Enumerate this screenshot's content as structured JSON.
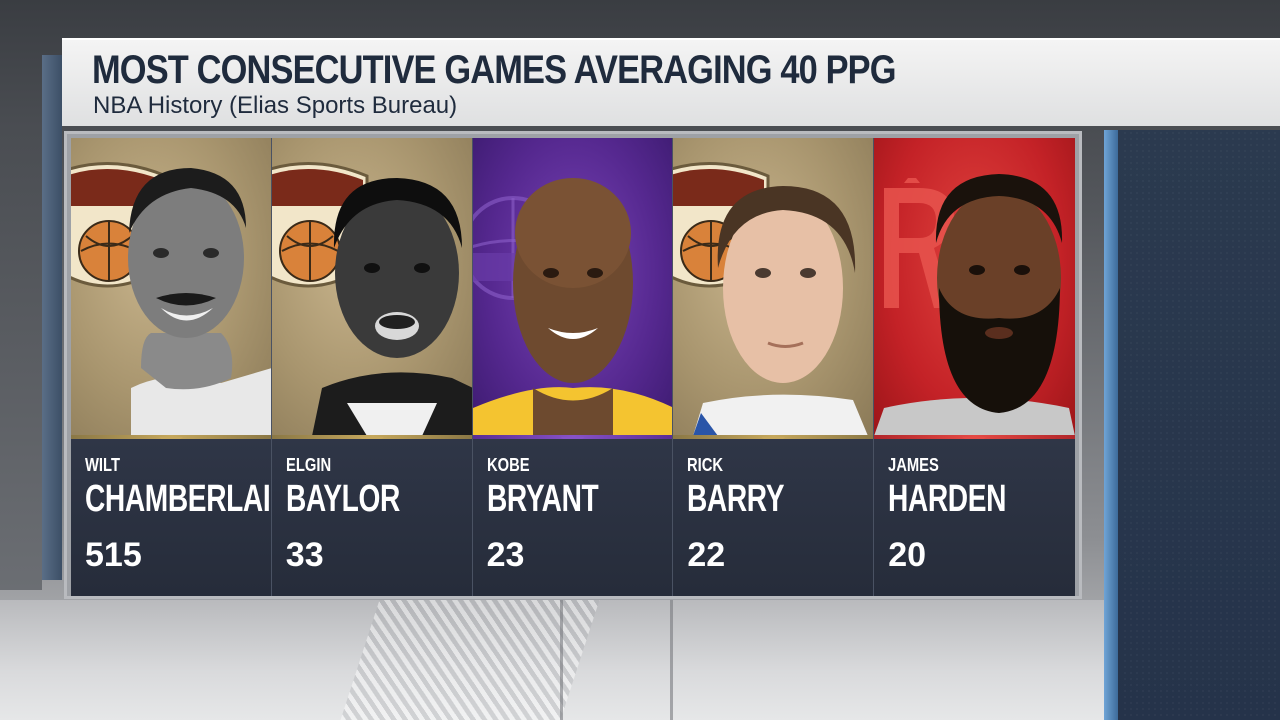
{
  "title": "MOST CONSECUTIVE GAMES AVERAGING 40 PPG",
  "subtitle": "NBA History (Elias Sports Bureau)",
  "players": [
    {
      "first": "WILT",
      "last": "CHAMBERLAIN",
      "value": "515",
      "background": "hall-of-fame",
      "accent": "#c6a85d"
    },
    {
      "first": "ELGIN",
      "last": "BAYLOR",
      "value": "33",
      "background": "hall-of-fame",
      "accent": "#c6a85d"
    },
    {
      "first": "KOBE",
      "last": "BRYANT",
      "value": "23",
      "background": "lakers",
      "accent": "#8652c8"
    },
    {
      "first": "RICK",
      "last": "BARRY",
      "value": "22",
      "background": "hall-of-fame",
      "accent": "#c6a85d"
    },
    {
      "first": "JAMES",
      "last": "HARDEN",
      "value": "20",
      "background": "rockets",
      "accent": "#e54a45"
    }
  ],
  "colors": {
    "banner_text": "#1f2b3d",
    "card_info_bg": "#2f3647",
    "hof_gold": "#a8956e",
    "lakers_purple": "#55288f",
    "rockets_red": "#c42227"
  },
  "icons": {
    "hof": "hall-of-fame-logo-icon",
    "lakers": "lakers-logo-icon",
    "rockets": "rockets-logo-icon"
  }
}
